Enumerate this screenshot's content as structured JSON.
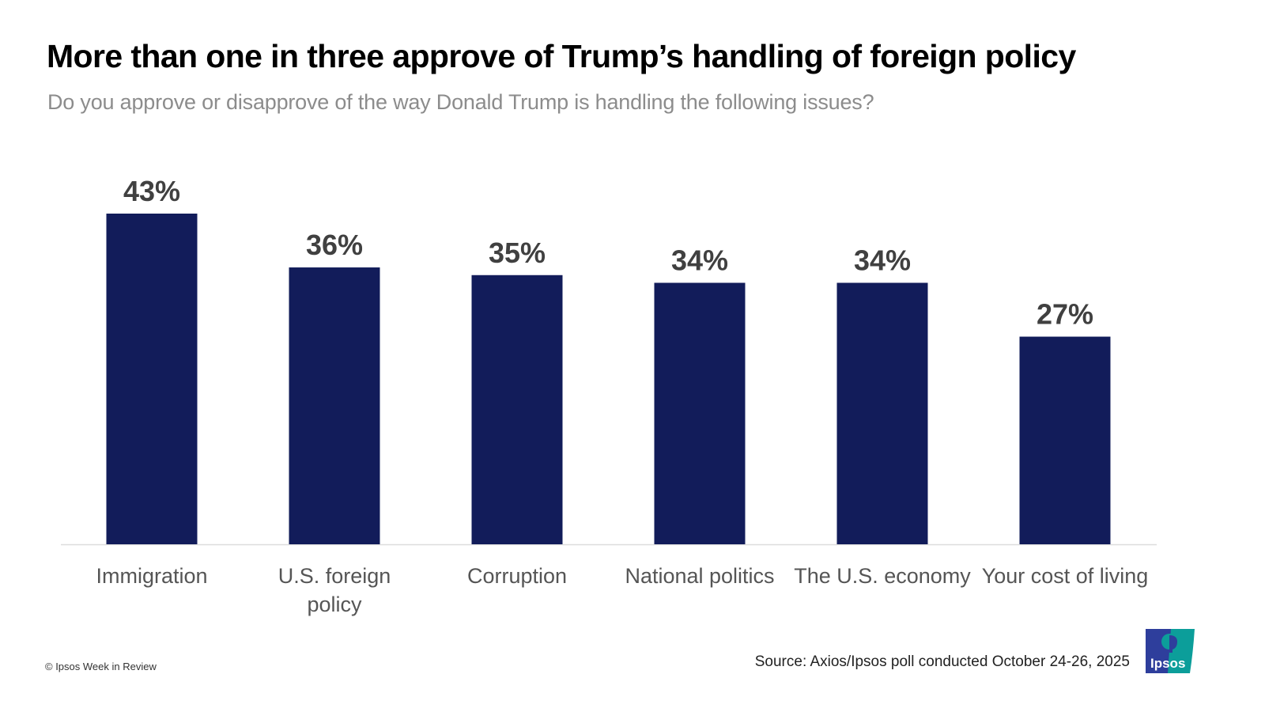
{
  "title": "More than one in three approve of Trump’s handling of foreign policy",
  "subtitle": "Do you approve or disapprove of the way Donald Trump is handling the following issues?",
  "footer": {
    "copyright": "© Ipsos Week in Review",
    "source": "Source: Axios/Ipsos poll conducted October 24-26, 2025",
    "logo_text": "Ipsos"
  },
  "colors": {
    "bar": "#121c5a",
    "value_label": "#404040",
    "category_label": "#555555",
    "baseline": "#dddddd",
    "logo_blue": "#2e3e9c",
    "logo_teal": "#0c9e9a"
  },
  "chart_data": {
    "type": "bar",
    "title": "More than one in three approve of Trump’s handling of foreign policy",
    "subtitle": "Do you approve or disapprove of the way Donald Trump is handling the following issues?",
    "categories": [
      [
        "Immigration"
      ],
      [
        "U.S. foreign",
        "policy"
      ],
      [
        "Corruption"
      ],
      [
        "National politics"
      ],
      [
        "The U.S. economy"
      ],
      [
        "Your cost of living"
      ]
    ],
    "values": [
      43,
      36,
      35,
      34,
      34,
      27
    ],
    "labels": [
      "43%",
      "36%",
      "35%",
      "34%",
      "34%",
      "27%"
    ],
    "unit": "%",
    "xlabel": "",
    "ylabel": "",
    "ylim": [
      0,
      43
    ],
    "grid": false,
    "legend": "none"
  }
}
